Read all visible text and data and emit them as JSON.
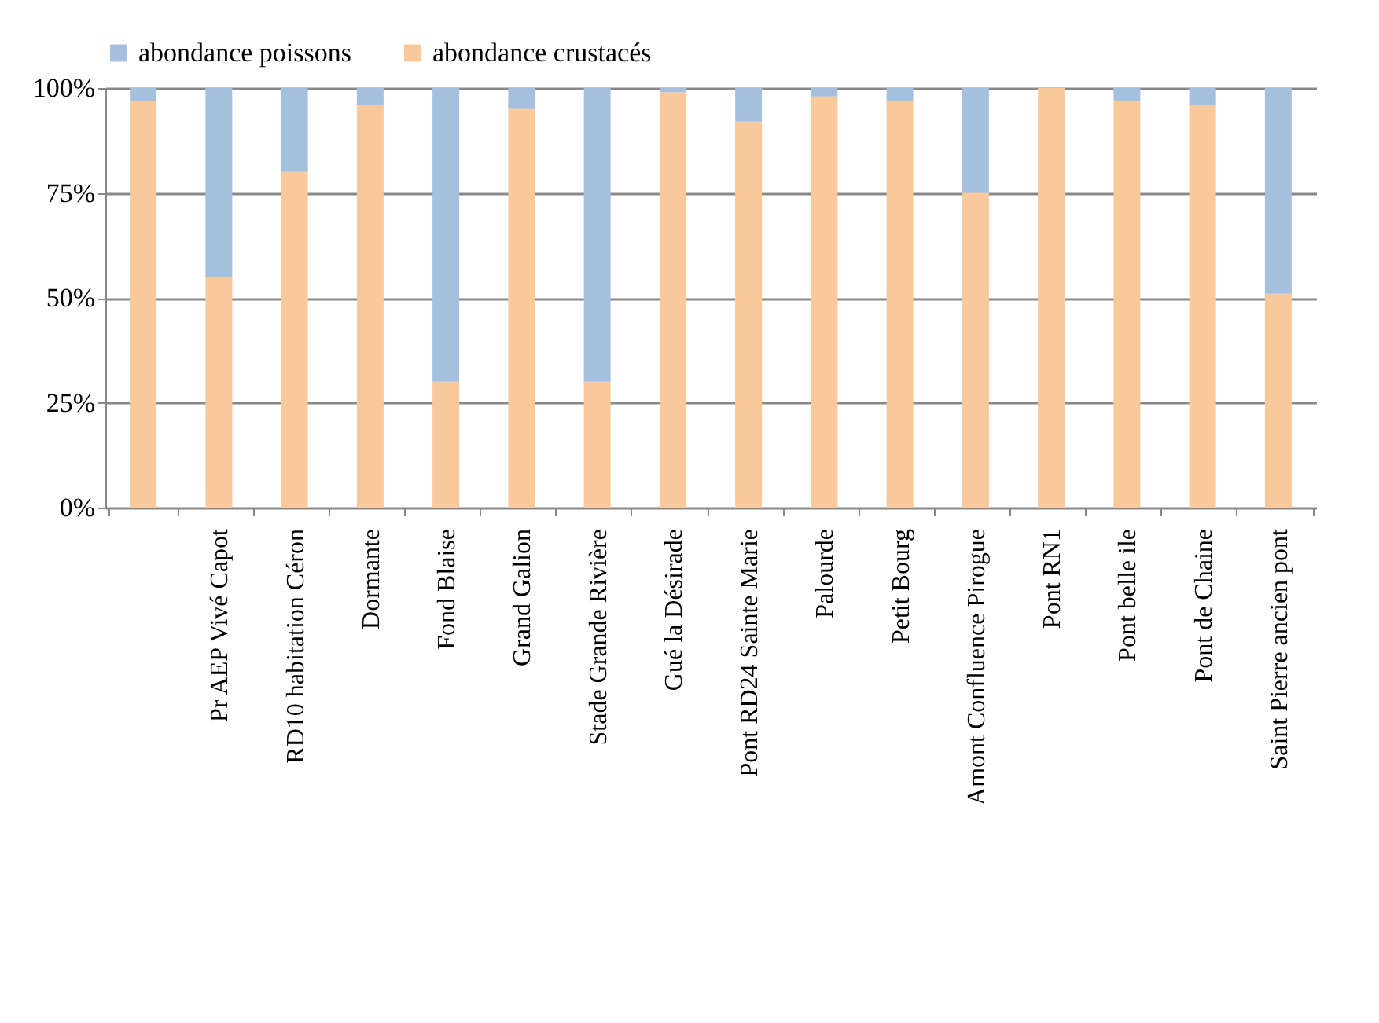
{
  "chart_data": {
    "type": "bar",
    "stacked": true,
    "categories": [
      null,
      "Pr AEP Vivé Capot",
      "RD10 habitation Céron",
      "Dormante",
      "Fond Blaise",
      "Grand Galion",
      "Stade Grande Rivière",
      "Gué la Désirade",
      "Pont RD24 Sainte Marie",
      "Palourde",
      "Petit Bourg",
      "Amont Confluence Pirogue",
      "Pont RN1",
      "Pont belle ile",
      "Pont de Chaine",
      "Saint Pierre ancien pont"
    ],
    "series": [
      {
        "name": "abondance crustacés",
        "color": "#fac99b",
        "values": [
          97,
          55,
          80,
          96,
          30,
          95,
          30,
          99,
          92,
          98,
          97,
          75,
          100,
          97,
          96,
          51
        ]
      },
      {
        "name": "abondance poissons",
        "color": "#a5bfdf",
        "values": [
          3,
          45,
          20,
          4,
          70,
          5,
          70,
          1,
          8,
          2,
          3,
          25,
          0,
          3,
          4,
          49
        ]
      }
    ],
    "ylim": [
      0,
      100
    ],
    "yticks": [
      {
        "value": 0,
        "label": "0%"
      },
      {
        "value": 25,
        "label": "25%"
      },
      {
        "value": 50,
        "label": "50%"
      },
      {
        "value": 75,
        "label": "75%"
      },
      {
        "value": 100,
        "label": "100%"
      }
    ],
    "grid": "y",
    "legend": "top"
  }
}
